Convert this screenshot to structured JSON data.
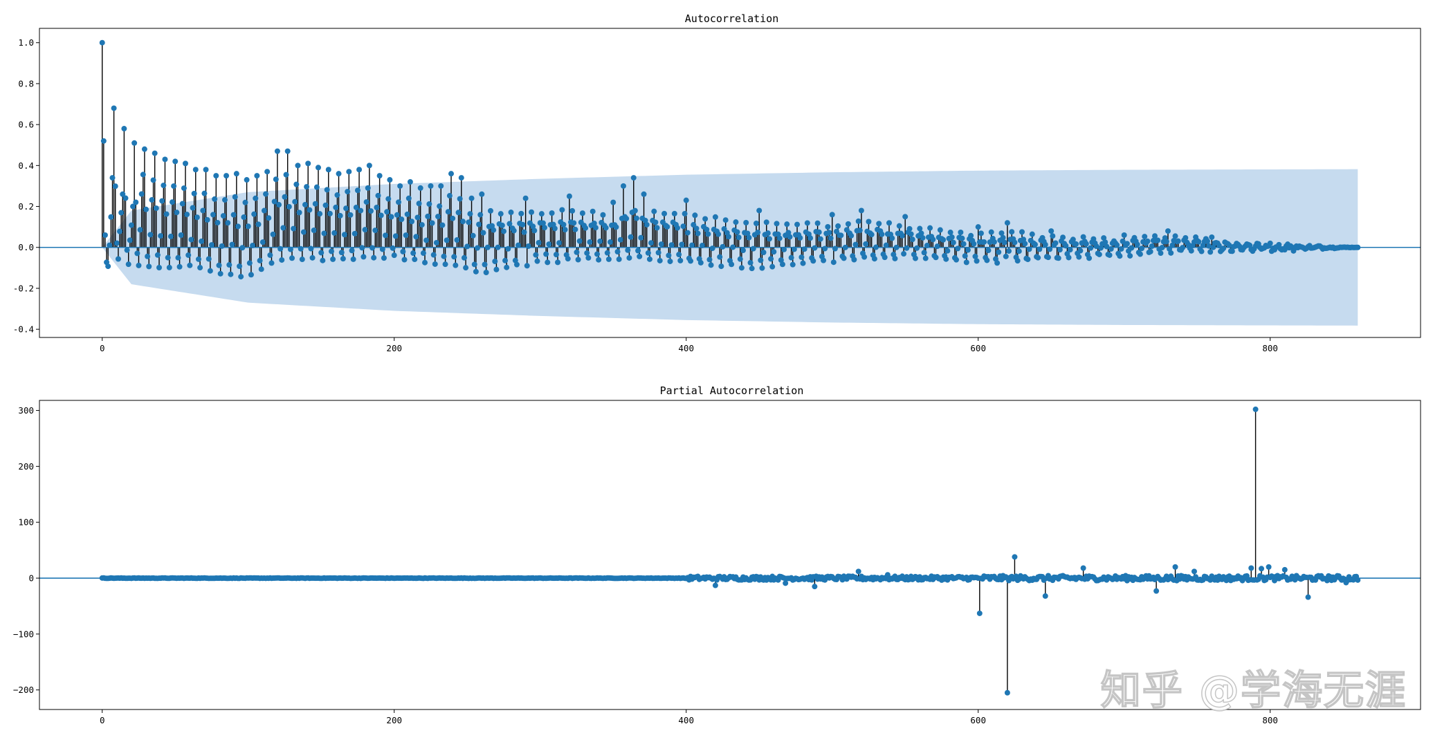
{
  "watermark": "知乎 @学海无涯",
  "colors": {
    "marker": "#1f77b4",
    "stem": "#000000",
    "zero_line": "#1f77b4",
    "confint": "#c6dbef"
  },
  "chart_data": [
    {
      "type": "stem",
      "title": "Autocorrelation",
      "xlabel": "",
      "ylabel": "",
      "xlim": [
        -43,
        903
      ],
      "ylim": [
        -0.44,
        1.07
      ],
      "xticks": [
        0,
        200,
        400,
        600,
        800
      ],
      "xtick_labels": [
        "0",
        "200",
        "400",
        "600",
        "800"
      ],
      "yticks": [
        -0.4,
        -0.2,
        0.0,
        0.2,
        0.4,
        0.6,
        0.8,
        1.0
      ],
      "ytick_labels": [
        "-0.4",
        "-0.2",
        "0.0",
        "0.2",
        "0.4",
        "0.6",
        "0.8",
        "1.0"
      ],
      "nlags": 860,
      "confidence_band": true,
      "confidence_band_upper": [
        [
          0,
          0.0
        ],
        [
          20,
          0.18
        ],
        [
          100,
          0.27
        ],
        [
          200,
          0.31
        ],
        [
          300,
          0.335
        ],
        [
          400,
          0.355
        ],
        [
          500,
          0.367
        ],
        [
          600,
          0.375
        ],
        [
          700,
          0.379
        ],
        [
          800,
          0.381
        ],
        [
          860,
          0.382
        ]
      ],
      "key_points": [
        [
          0,
          1.0
        ],
        [
          1,
          0.52
        ],
        [
          2,
          0.06
        ],
        [
          7,
          0.34
        ],
        [
          8,
          0.68
        ],
        [
          14,
          0.26
        ],
        [
          15,
          0.58
        ],
        [
          21,
          0.2
        ],
        [
          22,
          0.51
        ],
        [
          29,
          0.48
        ],
        [
          36,
          0.46
        ],
        [
          43,
          0.43
        ],
        [
          50,
          0.42
        ],
        [
          57,
          0.41
        ],
        [
          64,
          0.38
        ],
        [
          71,
          0.38
        ],
        [
          78,
          0.35
        ],
        [
          85,
          0.35
        ],
        [
          92,
          0.36
        ],
        [
          99,
          0.33
        ],
        [
          106,
          0.35
        ],
        [
          113,
          0.37
        ],
        [
          120,
          0.47
        ],
        [
          127,
          0.47
        ],
        [
          134,
          0.4
        ],
        [
          141,
          0.41
        ],
        [
          148,
          0.39
        ],
        [
          155,
          0.38
        ],
        [
          162,
          0.36
        ],
        [
          169,
          0.37
        ],
        [
          176,
          0.38
        ],
        [
          183,
          0.4
        ],
        [
          190,
          0.35
        ],
        [
          197,
          0.33
        ],
        [
          204,
          0.3
        ],
        [
          211,
          0.32
        ],
        [
          218,
          0.29
        ],
        [
          225,
          0.3
        ],
        [
          232,
          0.3
        ],
        [
          239,
          0.36
        ],
        [
          246,
          0.34
        ],
        [
          253,
          0.24
        ],
        [
          260,
          0.26
        ],
        [
          290,
          0.24
        ],
        [
          320,
          0.25
        ],
        [
          350,
          0.22
        ],
        [
          357,
          0.3
        ],
        [
          364,
          0.34
        ],
        [
          371,
          0.26
        ],
        [
          400,
          0.23
        ],
        [
          450,
          0.18
        ],
        [
          500,
          0.16
        ],
        [
          520,
          0.18
        ],
        [
          550,
          0.15
        ],
        [
          600,
          0.1
        ],
        [
          620,
          0.12
        ],
        [
          650,
          0.08
        ],
        [
          700,
          0.06
        ],
        [
          730,
          0.08
        ],
        [
          760,
          0.05
        ],
        [
          800,
          0.02
        ],
        [
          860,
          0.0
        ]
      ],
      "minima": [
        [
          10,
          -0.13
        ],
        [
          30,
          -0.19
        ],
        [
          60,
          -0.17
        ],
        [
          95,
          -0.22
        ],
        [
          130,
          -0.13
        ],
        [
          160,
          -0.13
        ],
        [
          200,
          -0.1
        ],
        [
          260,
          -0.18
        ],
        [
          300,
          -0.12
        ],
        [
          340,
          -0.1
        ],
        [
          400,
          -0.12
        ],
        [
          450,
          -0.14
        ],
        [
          500,
          -0.1
        ],
        [
          560,
          -0.08
        ],
        [
          610,
          -0.1
        ],
        [
          650,
          -0.08
        ],
        [
          700,
          -0.05
        ],
        [
          760,
          -0.03
        ],
        [
          860,
          0.0
        ]
      ]
    },
    {
      "type": "stem",
      "title": "Partial Autocorrelation",
      "xlabel": "",
      "ylabel": "",
      "xlim": [
        -43,
        903
      ],
      "ylim": [
        -235,
        318
      ],
      "xticks": [
        0,
        200,
        400,
        600,
        800
      ],
      "xtick_labels": [
        "0",
        "200",
        "400",
        "600",
        "800"
      ],
      "yticks": [
        -200,
        -100,
        0,
        100,
        200,
        300
      ],
      "ytick_labels": [
        "−200",
        "−100",
        "0",
        "100",
        "200",
        "300"
      ],
      "nlags": 860,
      "confidence_band": false,
      "spikes": [
        [
          420,
          -13
        ],
        [
          468,
          -9
        ],
        [
          488,
          -15
        ],
        [
          518,
          12
        ],
        [
          538,
          6
        ],
        [
          601,
          -63
        ],
        [
          620,
          -205
        ],
        [
          625,
          38
        ],
        [
          646,
          -32
        ],
        [
          672,
          18
        ],
        [
          722,
          -23
        ],
        [
          735,
          20
        ],
        [
          748,
          12
        ],
        [
          787,
          18
        ],
        [
          790,
          302
        ],
        [
          794,
          17
        ],
        [
          799,
          20
        ],
        [
          810,
          15
        ],
        [
          826,
          -34
        ],
        [
          852,
          -8
        ]
      ]
    }
  ]
}
